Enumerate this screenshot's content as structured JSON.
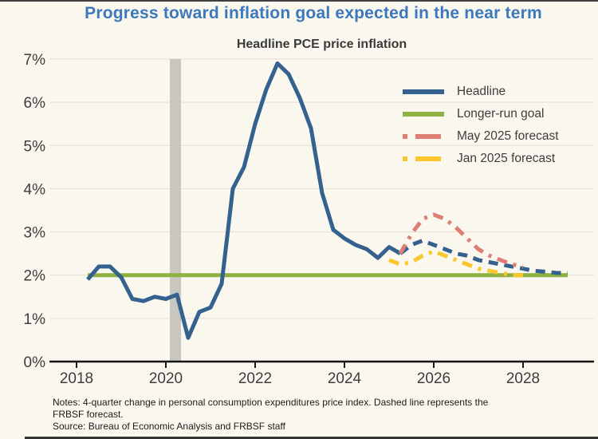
{
  "title": "Progress toward inflation goal expected in the near term",
  "subtitle": "Headline PCE price inflation",
  "colors": {
    "background": "#faf7ee",
    "title": "#3c78bc",
    "headline": "#35618e",
    "goal": "#8eb141",
    "may_forecast": "#dd7f75",
    "jan_forecast": "#fcc72d",
    "gridline": "#e7e3d9",
    "axis": "#141414",
    "tick_label": "#3d3d3d",
    "recession_band": "#c8c6c1"
  },
  "legend": [
    {
      "label": "Headline",
      "style": "solid",
      "color_key": "headline"
    },
    {
      "label": "Longer-run goal",
      "style": "solid",
      "color_key": "goal"
    },
    {
      "label": "May 2025 forecast",
      "style": "dash-dot",
      "color_key": "may_forecast"
    },
    {
      "label": "Jan 2025 forecast",
      "style": "dash-dot",
      "color_key": "jan_forecast"
    }
  ],
  "notes": {
    "lines": [
      "Notes: 4-quarter change in personal consumption expenditures price index. Dashed line represents the",
      "FRBSF forecast.",
      "Source: Bureau of Economic Analysis and FRBSF staff"
    ]
  },
  "chart_data": {
    "type": "line",
    "title": "Headline PCE price inflation",
    "x_axis": {
      "tick_years": [
        2018,
        2020,
        2022,
        2024,
        2026,
        2028
      ],
      "range": [
        2017.4,
        2029.6
      ]
    },
    "y_axis": {
      "tick_values": [
        0,
        1,
        2,
        3,
        4,
        5,
        6,
        7
      ],
      "tick_labels": [
        "0%",
        "1%",
        "2%",
        "3%",
        "4%",
        "5%",
        "6%",
        "7%"
      ],
      "min": 0,
      "max": 7,
      "unit": "percent",
      "grid": true
    },
    "recession_shading": {
      "start": 2020.09,
      "end": 2020.34
    },
    "legend_position": "upper-right",
    "series": [
      {
        "name": "Longer-run goal",
        "style": "solid",
        "color_key": "goal",
        "points": [
          [
            "2018Q1",
            2.0
          ],
          [
            "2028Q4",
            2.0
          ]
        ]
      },
      {
        "name": "Jan 2025 forecast",
        "style": "dash-dot",
        "color_key": "jan_forecast",
        "points": [
          [
            "2024Q4",
            2.35
          ],
          [
            "2025Q1",
            2.25
          ],
          [
            "2025Q2",
            2.3
          ],
          [
            "2025Q3",
            2.45
          ],
          [
            "2025Q4",
            2.55
          ],
          [
            "2026Q1",
            2.45
          ],
          [
            "2026Q2",
            2.35
          ],
          [
            "2026Q3",
            2.25
          ],
          [
            "2026Q4",
            2.15
          ],
          [
            "2027Q1",
            2.1
          ],
          [
            "2027Q2",
            2.05
          ],
          [
            "2027Q3",
            2.0
          ],
          [
            "2027Q4",
            2.0
          ]
        ]
      },
      {
        "name": "Headline FRBSF forecast",
        "style": "dashed",
        "color_key": "headline",
        "points": [
          [
            "2025Q1",
            2.5
          ],
          [
            "2025Q2",
            2.7
          ],
          [
            "2025Q3",
            2.8
          ],
          [
            "2025Q4",
            2.7
          ],
          [
            "2026Q1",
            2.6
          ],
          [
            "2026Q2",
            2.5
          ],
          [
            "2026Q3",
            2.45
          ],
          [
            "2026Q4",
            2.35
          ],
          [
            "2027Q1",
            2.3
          ],
          [
            "2027Q2",
            2.25
          ],
          [
            "2027Q3",
            2.2
          ],
          [
            "2027Q4",
            2.15
          ],
          [
            "2028Q1",
            2.1
          ],
          [
            "2028Q2",
            2.08
          ],
          [
            "2028Q3",
            2.05
          ],
          [
            "2028Q4",
            2.05
          ]
        ]
      },
      {
        "name": "Headline",
        "style": "solid",
        "color_key": "headline",
        "points": [
          [
            "2018Q1",
            1.9
          ],
          [
            "2018Q2",
            2.2
          ],
          [
            "2018Q3",
            2.2
          ],
          [
            "2018Q4",
            1.95
          ],
          [
            "2019Q1",
            1.45
          ],
          [
            "2019Q2",
            1.4
          ],
          [
            "2019Q3",
            1.5
          ],
          [
            "2019Q4",
            1.45
          ],
          [
            "2020Q1",
            1.55
          ],
          [
            "2020Q2",
            0.55
          ],
          [
            "2020Q3",
            1.15
          ],
          [
            "2020Q4",
            1.25
          ],
          [
            "2021Q1",
            1.8
          ],
          [
            "2021Q2",
            4.0
          ],
          [
            "2021Q3",
            4.5
          ],
          [
            "2021Q4",
            5.5
          ],
          [
            "2022Q1",
            6.3
          ],
          [
            "2022Q2",
            6.9
          ],
          [
            "2022Q3",
            6.65
          ],
          [
            "2022Q4",
            6.1
          ],
          [
            "2023Q1",
            5.4
          ],
          [
            "2023Q2",
            3.9
          ],
          [
            "2023Q3",
            3.05
          ],
          [
            "2023Q4",
            2.85
          ],
          [
            "2024Q1",
            2.7
          ],
          [
            "2024Q2",
            2.6
          ],
          [
            "2024Q3",
            2.4
          ],
          [
            "2024Q4",
            2.65
          ],
          [
            "2025Q1",
            2.5
          ]
        ]
      },
      {
        "name": "May 2025 forecast",
        "style": "dash-dot",
        "color_key": "may_forecast",
        "points": [
          [
            "2025Q1",
            2.5
          ],
          [
            "2025Q2",
            2.95
          ],
          [
            "2025Q3",
            3.3
          ],
          [
            "2025Q4",
            3.4
          ],
          [
            "2026Q1",
            3.3
          ],
          [
            "2026Q2",
            3.1
          ],
          [
            "2026Q3",
            2.85
          ],
          [
            "2026Q4",
            2.6
          ],
          [
            "2027Q1",
            2.45
          ],
          [
            "2027Q2",
            2.35
          ],
          [
            "2027Q3",
            2.25
          ],
          [
            "2027Q4",
            2.2
          ]
        ]
      }
    ]
  }
}
